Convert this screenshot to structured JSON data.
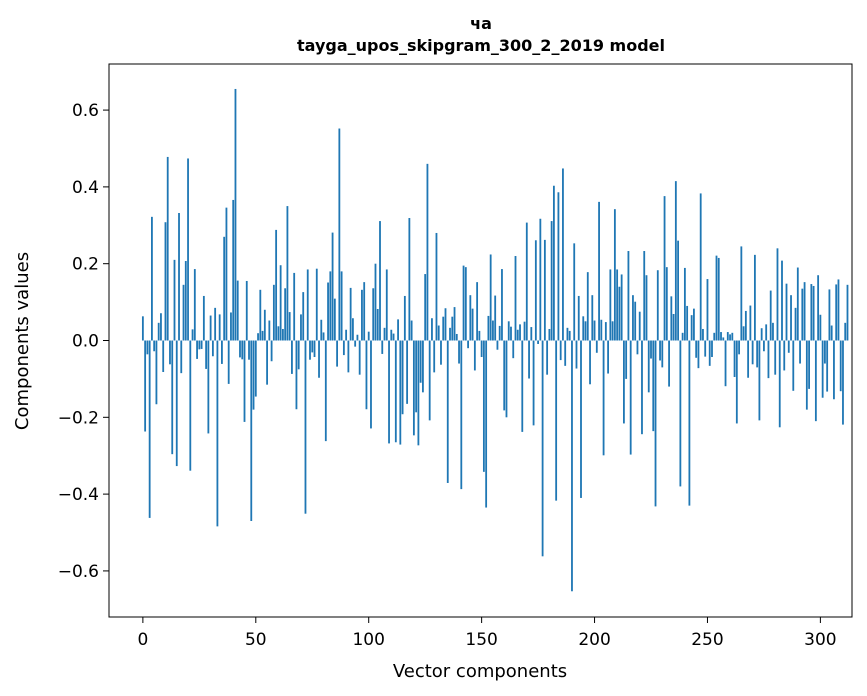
{
  "chart_data": {
    "type": "bar",
    "title_line1": "ча",
    "title_line2": "tayga_upos_skipgram_300_2_2019 model",
    "xlabel": "Vector components",
    "ylabel": "Components values",
    "xlim": [
      -15,
      314
    ],
    "ylim": [
      -0.72,
      0.72
    ],
    "xticks": [
      0,
      50,
      100,
      150,
      200,
      250,
      300
    ],
    "xtick_labels": [
      "0",
      "50",
      "100",
      "150",
      "200",
      "250",
      "300"
    ],
    "yticks": [
      -0.6,
      -0.4,
      -0.2,
      0.0,
      0.2,
      0.4,
      0.6
    ],
    "ytick_labels": [
      "−0.6",
      "−0.4",
      "−0.2",
      "0.0",
      "0.2",
      "0.4",
      "0.6"
    ],
    "bar_color": "#1f77b4",
    "values": [
      0.063,
      -0.237,
      -0.036,
      -0.462,
      0.322,
      -0.028,
      -0.166,
      0.046,
      0.071,
      -0.082,
      0.308,
      0.478,
      -0.062,
      -0.296,
      0.21,
      -0.327,
      0.332,
      -0.085,
      0.145,
      0.207,
      0.474,
      -0.339,
      0.029,
      0.186,
      -0.048,
      -0.023,
      -0.022,
      0.116,
      -0.074,
      -0.242,
      0.065,
      -0.041,
      0.085,
      -0.484,
      0.068,
      -0.061,
      0.27,
      0.346,
      -0.113,
      0.073,
      0.366,
      0.655,
      0.156,
      -0.044,
      -0.049,
      -0.212,
      0.155,
      -0.05,
      -0.47,
      -0.18,
      -0.146,
      0.019,
      0.132,
      0.025,
      0.08,
      -0.115,
      0.052,
      -0.054,
      0.145,
      0.288,
      0.037,
      0.196,
      0.03,
      0.136,
      0.35,
      0.074,
      -0.087,
      0.176,
      -0.179,
      -0.075,
      0.068,
      0.126,
      -0.451,
      0.185,
      -0.05,
      -0.031,
      -0.043,
      0.187,
      -0.097,
      0.054,
      0.021,
      -0.262,
      0.151,
      0.18,
      0.281,
      0.109,
      -0.068,
      0.552,
      0.18,
      -0.038,
      0.028,
      -0.083,
      0.137,
      0.058,
      -0.016,
      0.015,
      -0.089,
      0.132,
      0.152,
      -0.179,
      0.023,
      -0.229,
      0.136,
      0.2,
      0.082,
      0.311,
      -0.035,
      0.033,
      0.185,
      -0.268,
      0.028,
      0.018,
      -0.265,
      0.055,
      -0.271,
      -0.192,
      0.116,
      -0.165,
      0.319,
      0.052,
      -0.247,
      -0.187,
      -0.273,
      -0.11,
      -0.135,
      0.173,
      0.46,
      -0.208,
      0.058,
      -0.083,
      0.28,
      0.039,
      -0.063,
      0.062,
      0.084,
      -0.371,
      0.033,
      0.062,
      0.087,
      0.017,
      -0.06,
      -0.387,
      0.195,
      0.191,
      -0.02,
      0.118,
      0.083,
      -0.078,
      0.152,
      0.025,
      -0.043,
      -0.342,
      -0.435,
      0.064,
      0.224,
      0.052,
      0.117,
      -0.024,
      0.038,
      0.186,
      -0.182,
      -0.2,
      0.05,
      0.036,
      -0.046,
      0.22,
      0.028,
      0.042,
      -0.238,
      0.049,
      0.307,
      -0.099,
      0.035,
      -0.221,
      0.261,
      -0.009,
      0.317,
      -0.562,
      0.262,
      -0.089,
      0.03,
      0.311,
      0.403,
      -0.417,
      0.386,
      -0.051,
      0.448,
      -0.066,
      0.033,
      0.025,
      -0.653,
      0.253,
      -0.073,
      0.116,
      -0.41,
      0.063,
      0.05,
      0.178,
      -0.114,
      0.118,
      0.052,
      -0.032,
      0.361,
      0.054,
      -0.299,
      0.048,
      -0.086,
      0.185,
      0.05,
      0.342,
      0.185,
      0.14,
      0.172,
      -0.216,
      -0.1,
      0.233,
      -0.297,
      0.118,
      0.101,
      -0.036,
      0.075,
      -0.244,
      0.233,
      0.17,
      -0.135,
      -0.047,
      -0.236,
      -0.432,
      0.183,
      -0.052,
      -0.07,
      0.376,
      0.191,
      -0.12,
      0.115,
      0.069,
      0.415,
      0.26,
      -0.38,
      0.02,
      0.189,
      0.09,
      -0.43,
      0.066,
      0.083,
      -0.045,
      -0.072,
      0.383,
      0.03,
      -0.042,
      0.16,
      -0.066,
      -0.043,
      0.02,
      0.221,
      0.215,
      0.022,
      0.008,
      -0.119,
      0.022,
      0.016,
      0.02,
      -0.095,
      -0.216,
      -0.036,
      0.245,
      0.037,
      0.077,
      -0.097,
      0.091,
      -0.062,
      0.223,
      -0.07,
      -0.208,
      0.032,
      -0.028,
      0.042,
      -0.098,
      0.13,
      0.046,
      -0.089,
      0.24,
      -0.226,
      0.208,
      -0.078,
      0.148,
      -0.032,
      0.118,
      -0.131,
      0.085,
      0.19,
      -0.06,
      0.135,
      0.152,
      -0.18,
      -0.126,
      0.147,
      0.142,
      -0.21,
      0.17,
      0.067,
      -0.149,
      -0.06,
      -0.133,
      0.133,
      0.039,
      -0.153,
      0.146,
      0.159,
      -0.132,
      -0.219,
      0.046,
      0.145
    ]
  }
}
